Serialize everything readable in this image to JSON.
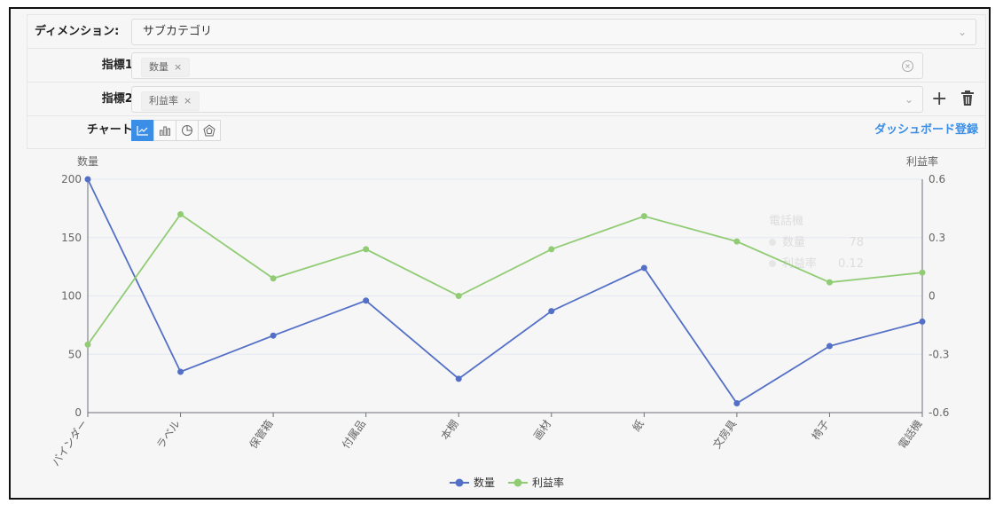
{
  "form": {
    "dimension": {
      "label": "ディメンション:",
      "value": "サブカテゴリ"
    },
    "metric1": {
      "label": "指標1:",
      "tag": "数量"
    },
    "metric2": {
      "label": "指標2:",
      "tag": "利益率"
    },
    "chart": {
      "label": "チャート:",
      "types": [
        "line-chart-icon",
        "bar-chart-icon",
        "pie-chart-icon",
        "radar-chart-icon"
      ],
      "active": 0
    },
    "dashboard_link": "ダッシュボード登録",
    "add_icon": "plus-icon",
    "delete_icon": "trash-icon"
  },
  "colors": {
    "quantity": "#5470c6",
    "margin": "#91cc75",
    "accent": "#3a8ee6"
  },
  "chart_data": {
    "type": "line",
    "categories": [
      "バインダー",
      "ラベル",
      "保管箱",
      "付属品",
      "本棚",
      "画材",
      "紙",
      "文房具",
      "椅子",
      "電話機"
    ],
    "series": [
      {
        "name": "数量",
        "axis": "left",
        "values": [
          200,
          35,
          66,
          96,
          29,
          87,
          124,
          8,
          57,
          78
        ]
      },
      {
        "name": "利益率",
        "axis": "right",
        "values": [
          -0.25,
          0.42,
          0.09,
          0.24,
          0.0,
          0.24,
          0.41,
          0.28,
          0.07,
          0.12
        ]
      }
    ],
    "ylabel_left": "数量",
    "ylabel_right": "利益率",
    "ylim_left": [
      0,
      200
    ],
    "ylim_right": [
      -0.6,
      0.6
    ],
    "yticks_left": [
      0,
      50,
      100,
      150,
      200
    ],
    "yticks_right": [
      "-0.6",
      "-0.3",
      "0",
      "0.3",
      "0.6"
    ],
    "legend": [
      "数量",
      "利益率"
    ],
    "legend_position": "bottom-center",
    "tooltip": {
      "title": "電話機",
      "rows": [
        {
          "name": "数量",
          "value": "78"
        },
        {
          "name": "利益率",
          "value": "0.12"
        }
      ]
    }
  }
}
